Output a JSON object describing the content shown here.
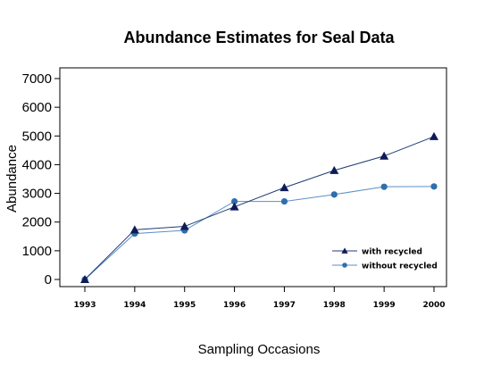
{
  "chart_data": {
    "type": "line",
    "title": "Abundance Estimates for Seal Data",
    "xlabel": "Sampling Occasions",
    "ylabel": "Abundance",
    "x": [
      1993,
      1994,
      1995,
      1996,
      1997,
      1998,
      1999,
      2000
    ],
    "xtick_labels": [
      "1993",
      "1994",
      "1995",
      "1996",
      "1997",
      "1998",
      "1999",
      "2000"
    ],
    "yticks": [
      0,
      1000,
      2000,
      3000,
      4000,
      5000,
      6000,
      7000
    ],
    "ytick_labels": [
      "0",
      "1000",
      "2000",
      "3000",
      "4000",
      "5000",
      "6000",
      "7000"
    ],
    "ylim": [
      -200,
      7500
    ],
    "grid": false,
    "legend_position": "bottom-right",
    "series": [
      {
        "name": "with recycled",
        "marker": "triangle",
        "color": "#0d1b57",
        "line_color": "#1f3b73",
        "values": [
          0,
          1730,
          1850,
          2530,
          3200,
          3800,
          4300,
          4980
        ]
      },
      {
        "name": "without recycled",
        "marker": "circle",
        "color": "#2e6fae",
        "line_color": "#5b8fc7",
        "values": [
          0,
          1600,
          1710,
          2720,
          2720,
          2960,
          3230,
          3240
        ]
      }
    ]
  }
}
